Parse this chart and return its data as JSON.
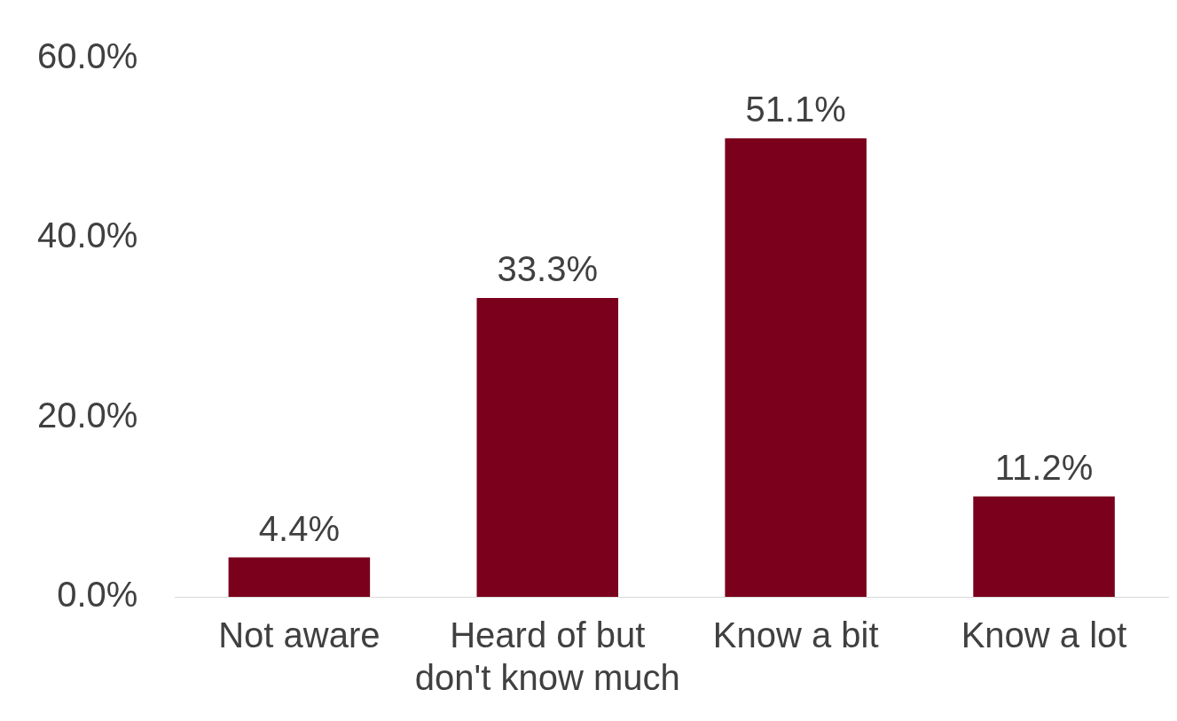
{
  "chart_data": {
    "type": "bar",
    "categories": [
      "Not aware",
      "Heard of but don't know much",
      "Know a bit",
      "Know a lot"
    ],
    "values": [
      4.4,
      33.3,
      51.1,
      11.2
    ],
    "color": "#7b001c",
    "value_labels": [
      "4.4%",
      "33.3%",
      "51.1%",
      "11.2%"
    ],
    "ylim": [
      0,
      60
    ],
    "yticks": [
      {
        "value": 0,
        "label": "0.0%"
      },
      {
        "value": 20,
        "label": "20.0%"
      },
      {
        "value": 40,
        "label": "40.0%"
      },
      {
        "value": 60,
        "label": "60.0%"
      }
    ],
    "grid": false,
    "legend": false
  }
}
